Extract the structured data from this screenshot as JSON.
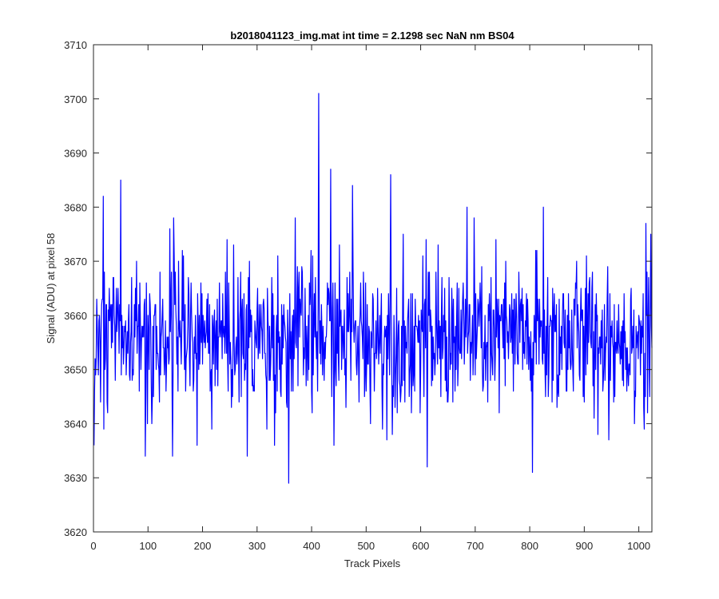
{
  "chart_data": {
    "type": "line",
    "title": "b2018041123_img.mat int time = 2.1298 sec  NaN nm BS04",
    "xlabel": "Track Pixels",
    "ylabel": "Signal (ADU) at pixel 58",
    "xlim": [
      0,
      1024
    ],
    "ylim": [
      3620,
      3710
    ],
    "xticks": [
      0,
      100,
      200,
      300,
      400,
      500,
      600,
      700,
      800,
      900,
      1000
    ],
    "yticks": [
      3620,
      3630,
      3640,
      3650,
      3660,
      3670,
      3680,
      3690,
      3700,
      3710
    ],
    "grid": false,
    "legend": "none",
    "series": [
      {
        "color": "#0000ff",
        "n_points": 1024,
        "x_start": 1,
        "x_step": 1,
        "baseline": 3656,
        "noise_std": 7,
        "notable_points": [
          {
            "x": 1,
            "y": 3636
          },
          {
            "x": 18,
            "y": 3682
          },
          {
            "x": 50,
            "y": 3685
          },
          {
            "x": 95,
            "y": 3634
          },
          {
            "x": 140,
            "y": 3676
          },
          {
            "x": 145,
            "y": 3634
          },
          {
            "x": 190,
            "y": 3636
          },
          {
            "x": 282,
            "y": 3634
          },
          {
            "x": 358,
            "y": 3629
          },
          {
            "x": 370,
            "y": 3678
          },
          {
            "x": 413,
            "y": 3701
          },
          {
            "x": 435,
            "y": 3687
          },
          {
            "x": 475,
            "y": 3684
          },
          {
            "x": 545,
            "y": 3686
          },
          {
            "x": 612,
            "y": 3632
          },
          {
            "x": 685,
            "y": 3680
          },
          {
            "x": 805,
            "y": 3631
          },
          {
            "x": 825,
            "y": 3680
          },
          {
            "x": 1010,
            "y": 3639
          },
          {
            "x": 1022,
            "y": 3675
          }
        ]
      }
    ]
  }
}
